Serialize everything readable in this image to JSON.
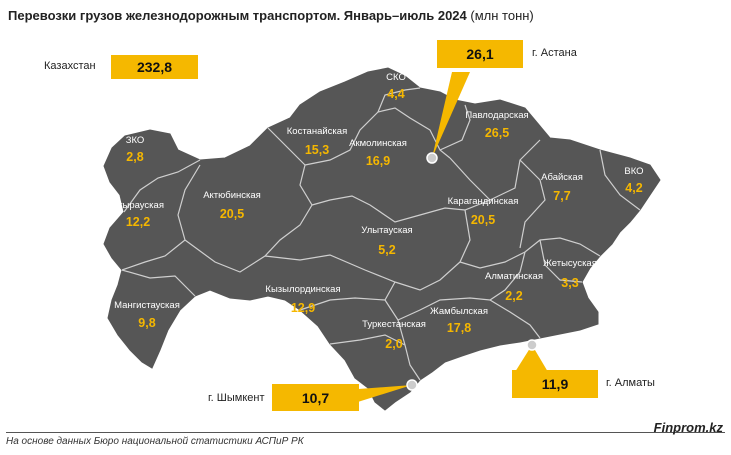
{
  "title": {
    "main": "Перевозки грузов железнодорожным транспортом. Январь–июль 2024",
    "unit": "(млн тонн)"
  },
  "total": {
    "label": "Казахстан",
    "value": "232,8"
  },
  "regions": [
    {
      "name": "ЗКО",
      "value": "2,8"
    },
    {
      "name": "Атырауская",
      "value": "12,2"
    },
    {
      "name": "Мангистауская",
      "value": "9,8"
    },
    {
      "name": "Актюбинская",
      "value": "20,5"
    },
    {
      "name": "Костанайская",
      "value": "15,3"
    },
    {
      "name": "СКО",
      "value": "4,4"
    },
    {
      "name": "Акмолинская",
      "value": "16,9"
    },
    {
      "name": "Павлодарская",
      "value": "26,5"
    },
    {
      "name": "ВКО",
      "value": "4,2"
    },
    {
      "name": "Абайская",
      "value": "7,7"
    },
    {
      "name": "Карагандинская",
      "value": "20,5"
    },
    {
      "name": "Улытауская",
      "value": "5,2"
    },
    {
      "name": "Кызылординская",
      "value": "12,9"
    },
    {
      "name": "Туркестанская",
      "value": "2,0"
    },
    {
      "name": "Жамбылская",
      "value": "17,8"
    },
    {
      "name": "Алматинская",
      "value": "2,2"
    },
    {
      "name": "Жетысуская",
      "value": "3,3"
    }
  ],
  "cities": [
    {
      "name": "г. Астана",
      "value": "26,1"
    },
    {
      "name": "г. Шымкент",
      "value": "10,7"
    },
    {
      "name": "г. Алматы",
      "value": "11,9"
    }
  ],
  "colors": {
    "map": "#555555",
    "accent": "#f5b800",
    "border": "#cfcfcf"
  },
  "source": "На основе данных Бюро национальной статистики АСПиР РК",
  "brand": "Finprom.kz"
}
